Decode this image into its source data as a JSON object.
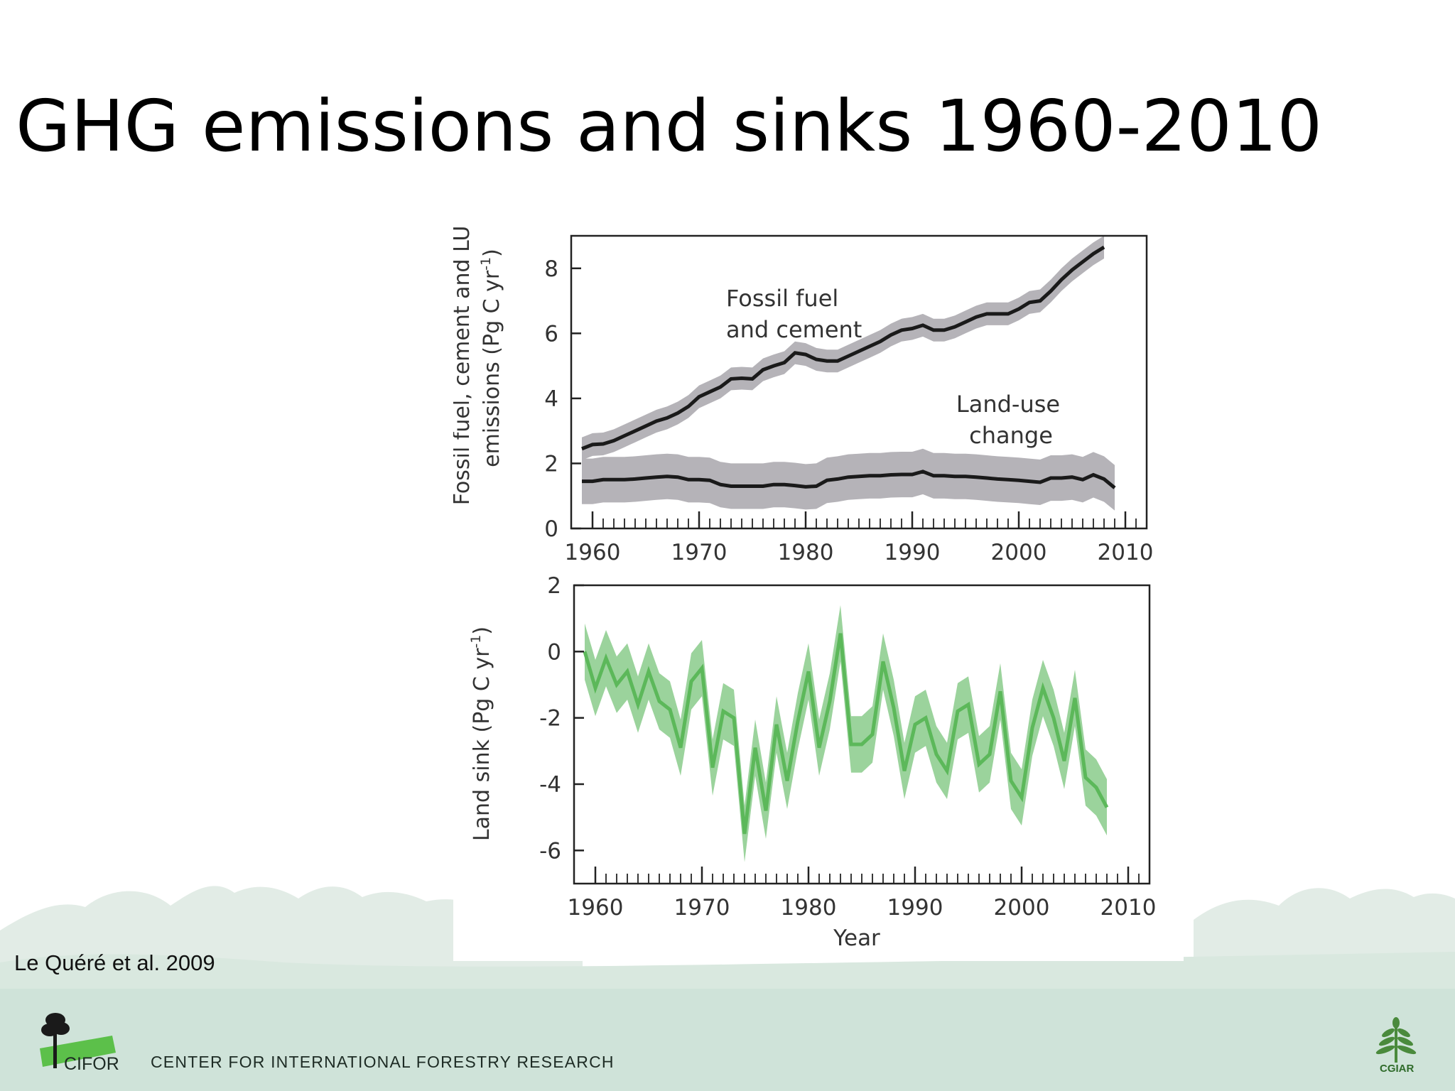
{
  "slide": {
    "title": "GHG emissions and sinks 1960-2010",
    "citation": "Le Quéré et al. 2009",
    "footer_org": "CENTER FOR INTERNATIONAL FORESTRY RESEARCH",
    "logo_left_text": "CIFOR",
    "logo_right_text": "CGIAR"
  },
  "colors": {
    "fossil_line": "#1a1a1a",
    "fossil_band": "#b5b3b8",
    "sink_line": "#5cb85a",
    "sink_band": "#9bd39c",
    "footer_band": "#cfe3d9"
  },
  "chart_data": [
    {
      "type": "line",
      "ylabel_line1": "Fossil fuel, cement and LUC",
      "ylabel_line2": "emissions (Pg C yr",
      "ylabel_sup": "-1",
      "ylabel_end": ")",
      "ylim": [
        0,
        9
      ],
      "xlim": [
        1958,
        2012
      ],
      "x_ticks": [
        1960,
        1970,
        1980,
        1990,
        2000,
        2010
      ],
      "y_ticks": [
        0,
        2,
        4,
        6,
        8
      ],
      "series": [
        {
          "name": "Fossil fuel and cement",
          "label_lines": [
            "Fossil fuel",
            "and cement"
          ],
          "band": 0.35,
          "points": [
            [
              1959,
              2.45
            ],
            [
              1960,
              2.58
            ],
            [
              1961,
              2.6
            ],
            [
              1962,
              2.7
            ],
            [
              1963,
              2.85
            ],
            [
              1964,
              3.0
            ],
            [
              1965,
              3.15
            ],
            [
              1966,
              3.3
            ],
            [
              1967,
              3.4
            ],
            [
              1968,
              3.55
            ],
            [
              1969,
              3.75
            ],
            [
              1970,
              4.05
            ],
            [
              1971,
              4.2
            ],
            [
              1972,
              4.35
            ],
            [
              1973,
              4.6
            ],
            [
              1974,
              4.62
            ],
            [
              1975,
              4.6
            ],
            [
              1976,
              4.88
            ],
            [
              1977,
              5.0
            ],
            [
              1978,
              5.1
            ],
            [
              1979,
              5.4
            ],
            [
              1980,
              5.35
            ],
            [
              1981,
              5.2
            ],
            [
              1982,
              5.15
            ],
            [
              1983,
              5.15
            ],
            [
              1984,
              5.3
            ],
            [
              1985,
              5.45
            ],
            [
              1986,
              5.6
            ],
            [
              1987,
              5.75
            ],
            [
              1988,
              5.95
            ],
            [
              1989,
              6.1
            ],
            [
              1990,
              6.15
            ],
            [
              1991,
              6.25
            ],
            [
              1992,
              6.1
            ],
            [
              1993,
              6.1
            ],
            [
              1994,
              6.2
            ],
            [
              1995,
              6.35
            ],
            [
              1996,
              6.5
            ],
            [
              1997,
              6.6
            ],
            [
              1998,
              6.6
            ],
            [
              1999,
              6.6
            ],
            [
              2000,
              6.75
            ],
            [
              2001,
              6.95
            ],
            [
              2002,
              7.0
            ],
            [
              2003,
              7.3
            ],
            [
              2004,
              7.65
            ],
            [
              2005,
              7.95
            ],
            [
              2006,
              8.2
            ],
            [
              2007,
              8.45
            ],
            [
              2008,
              8.65
            ]
          ]
        },
        {
          "name": "Land-use change",
          "label_lines": [
            "Land-use",
            "change"
          ],
          "band": 0.7,
          "points": [
            [
              1959,
              1.45
            ],
            [
              1960,
              1.45
            ],
            [
              1961,
              1.5
            ],
            [
              1962,
              1.5
            ],
            [
              1963,
              1.5
            ],
            [
              1964,
              1.52
            ],
            [
              1965,
              1.55
            ],
            [
              1966,
              1.58
            ],
            [
              1967,
              1.6
            ],
            [
              1968,
              1.58
            ],
            [
              1969,
              1.5
            ],
            [
              1970,
              1.5
            ],
            [
              1971,
              1.48
            ],
            [
              1972,
              1.35
            ],
            [
              1973,
              1.3
            ],
            [
              1974,
              1.3
            ],
            [
              1975,
              1.3
            ],
            [
              1976,
              1.3
            ],
            [
              1977,
              1.35
            ],
            [
              1978,
              1.35
            ],
            [
              1979,
              1.32
            ],
            [
              1980,
              1.28
            ],
            [
              1981,
              1.3
            ],
            [
              1982,
              1.48
            ],
            [
              1983,
              1.52
            ],
            [
              1984,
              1.58
            ],
            [
              1985,
              1.6
            ],
            [
              1986,
              1.62
            ],
            [
              1987,
              1.62
            ],
            [
              1988,
              1.65
            ],
            [
              1989,
              1.66
            ],
            [
              1990,
              1.66
            ],
            [
              1991,
              1.75
            ],
            [
              1992,
              1.62
            ],
            [
              1993,
              1.62
            ],
            [
              1994,
              1.6
            ],
            [
              1995,
              1.6
            ],
            [
              1996,
              1.58
            ],
            [
              1997,
              1.55
            ],
            [
              1998,
              1.52
            ],
            [
              1999,
              1.5
            ],
            [
              2000,
              1.48
            ],
            [
              2001,
              1.45
            ],
            [
              2002,
              1.42
            ],
            [
              2003,
              1.55
            ],
            [
              2004,
              1.55
            ],
            [
              2005,
              1.58
            ],
            [
              2006,
              1.5
            ],
            [
              2007,
              1.65
            ],
            [
              2008,
              1.52
            ],
            [
              2009,
              1.25
            ]
          ]
        }
      ]
    },
    {
      "type": "line",
      "ylabel": "Land sink (Pg C yr",
      "ylabel_sup": "-1",
      "ylabel_end": ")",
      "xlabel": "Year",
      "ylim": [
        -7,
        2
      ],
      "xlim": [
        1958,
        2012
      ],
      "x_ticks": [
        1960,
        1970,
        1980,
        1990,
        2000,
        2010
      ],
      "y_ticks": [
        2,
        0,
        -2,
        -4,
        -6
      ],
      "series": [
        {
          "name": "Land sink",
          "band": 0.85,
          "points": [
            [
              1959,
              0.0
            ],
            [
              1960,
              -1.1
            ],
            [
              1961,
              -0.2
            ],
            [
              1962,
              -1.0
            ],
            [
              1963,
              -0.6
            ],
            [
              1964,
              -1.6
            ],
            [
              1965,
              -0.6
            ],
            [
              1966,
              -1.5
            ],
            [
              1967,
              -1.75
            ],
            [
              1968,
              -2.9
            ],
            [
              1969,
              -0.9
            ],
            [
              1970,
              -0.5
            ],
            [
              1971,
              -3.5
            ],
            [
              1972,
              -1.8
            ],
            [
              1973,
              -2.0
            ],
            [
              1974,
              -5.5
            ],
            [
              1975,
              -2.9
            ],
            [
              1976,
              -4.8
            ],
            [
              1977,
              -2.2
            ],
            [
              1978,
              -3.9
            ],
            [
              1979,
              -2.1
            ],
            [
              1980,
              -0.6
            ],
            [
              1981,
              -2.9
            ],
            [
              1982,
              -1.5
            ],
            [
              1983,
              0.55
            ],
            [
              1984,
              -2.8
            ],
            [
              1985,
              -2.8
            ],
            [
              1986,
              -2.5
            ],
            [
              1987,
              -0.3
            ],
            [
              1988,
              -1.7
            ],
            [
              1989,
              -3.6
            ],
            [
              1990,
              -2.2
            ],
            [
              1991,
              -2.0
            ],
            [
              1992,
              -3.1
            ],
            [
              1993,
              -3.6
            ],
            [
              1994,
              -1.8
            ],
            [
              1995,
              -1.6
            ],
            [
              1996,
              -3.4
            ],
            [
              1997,
              -3.1
            ],
            [
              1998,
              -1.2
            ],
            [
              1999,
              -3.9
            ],
            [
              2000,
              -4.4
            ],
            [
              2001,
              -2.3
            ],
            [
              2002,
              -1.1
            ],
            [
              2003,
              -2.0
            ],
            [
              2004,
              -3.3
            ],
            [
              2005,
              -1.4
            ],
            [
              2006,
              -3.8
            ],
            [
              2007,
              -4.1
            ],
            [
              2008,
              -4.7
            ]
          ]
        }
      ]
    }
  ]
}
